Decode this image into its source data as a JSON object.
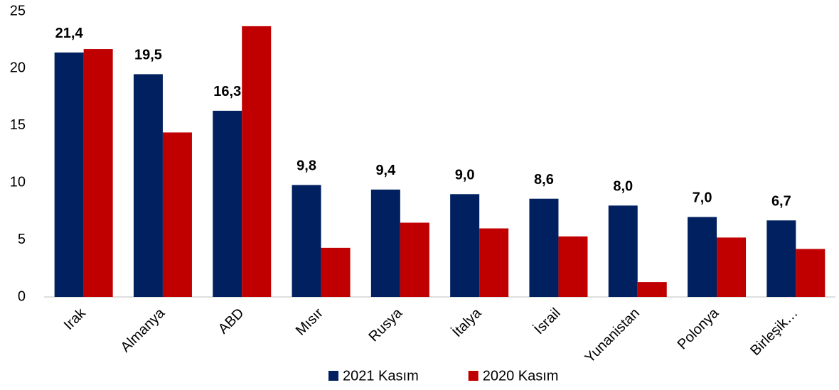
{
  "chart_data": {
    "type": "bar",
    "categories": [
      "Irak",
      "Almanya",
      "ABD",
      "Mısır",
      "Rusya",
      "İtalya",
      "İsrail",
      "Yunanistan",
      "Polonya",
      "Birleşik…"
    ],
    "series": [
      {
        "name": "2021 Kasım",
        "color": "#002060",
        "values": [
          21.4,
          19.5,
          16.3,
          9.8,
          9.4,
          9.0,
          8.6,
          8.0,
          7.0,
          6.7
        ],
        "value_labels": [
          "21,4",
          "19,5",
          "16,3",
          "9,8",
          "9,4",
          "9,0",
          "8,6",
          "8,0",
          "7,0",
          "6,7"
        ]
      },
      {
        "name": "2020 Kasım",
        "color": "#c00000",
        "values": [
          21.7,
          14.4,
          23.7,
          4.3,
          6.5,
          6.0,
          5.3,
          1.3,
          5.2,
          4.2
        ]
      }
    ],
    "ylim": [
      0,
      25
    ],
    "yticks": [
      0,
      5,
      10,
      15,
      20,
      25
    ],
    "grid": false,
    "legend": "bottom"
  }
}
